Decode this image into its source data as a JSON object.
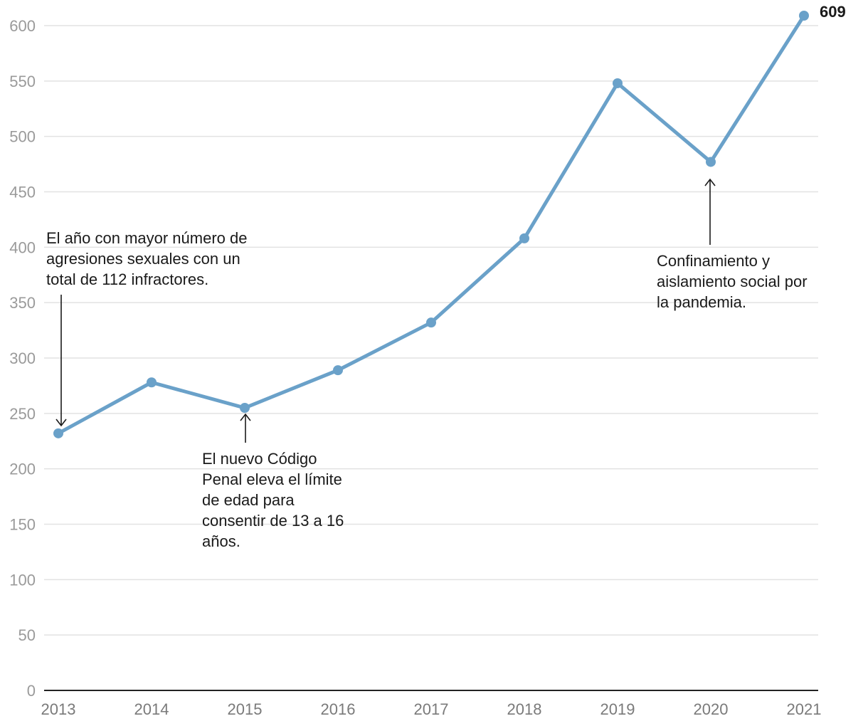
{
  "chart_data": {
    "type": "line",
    "title": "",
    "xlabel": "",
    "ylabel": "",
    "categories": [
      "2013",
      "2014",
      "2015",
      "2016",
      "2017",
      "2018",
      "2019",
      "2020",
      "2021"
    ],
    "series": [
      {
        "values": [
          232,
          278,
          255,
          289,
          332,
          408,
          548,
          477,
          609
        ]
      }
    ],
    "ylim": [
      0,
      600
    ],
    "yticks": [
      0,
      50,
      100,
      150,
      200,
      250,
      300,
      350,
      400,
      450,
      500,
      550,
      600
    ],
    "grid": true,
    "legend": "none",
    "end_label": "609",
    "annotations": [
      {
        "x": "2013",
        "y": 232,
        "lines": [
          "El año con mayor número de",
          "agresiones sexuales con un",
          "total de 112 infractores."
        ]
      },
      {
        "x": "2015",
        "y": 255,
        "lines": [
          "El nuevo Código",
          "Penal eleva el límite",
          "de edad para",
          "consentir de 13 a 16",
          "años."
        ]
      },
      {
        "x": "2020",
        "y": 477,
        "lines": [
          "Confinamiento y",
          "aislamiento social por",
          "la pandemia."
        ]
      }
    ]
  },
  "colors": {
    "series": "#6aa1c9",
    "grid": "#e2e2e2",
    "axis": "#222222"
  }
}
